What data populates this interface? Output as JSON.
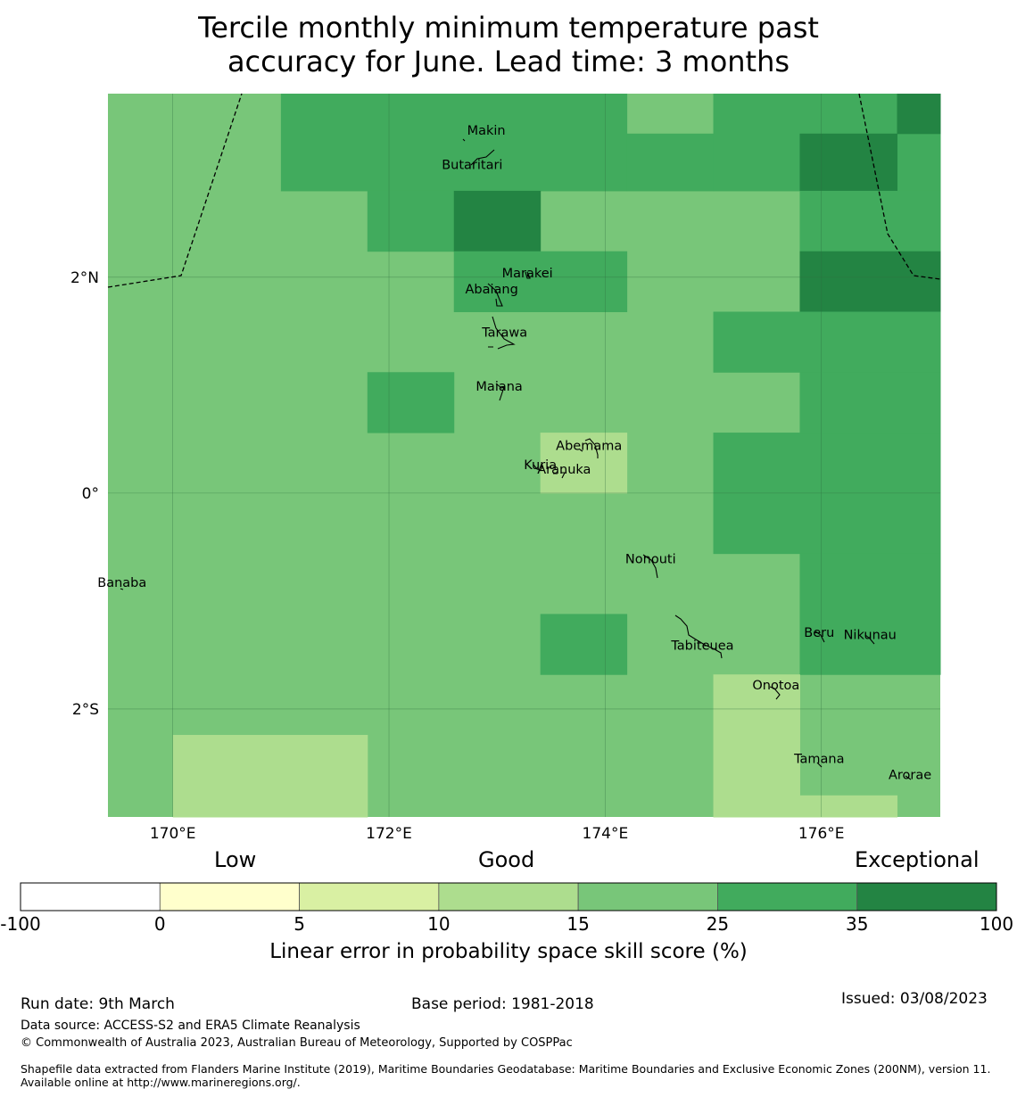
{
  "title": {
    "line1": "Tercile monthly minimum temperature past",
    "line2": "accuracy for June. Lead time: 3 months"
  },
  "map": {
    "x_ticks": [
      "170°E",
      "172°E",
      "174°E",
      "176°E"
    ],
    "y_ticks": [
      "2°N",
      "0°",
      "2°S"
    ],
    "islands": [
      {
        "name": "Makin",
        "lon": 172.9,
        "lat": 3.32
      },
      {
        "name": "Butaritari",
        "lon": 172.77,
        "lat": 3.0
      },
      {
        "name": "Marakei",
        "lon": 173.28,
        "lat": 2.0
      },
      {
        "name": "Abaiang",
        "lon": 172.95,
        "lat": 1.85
      },
      {
        "name": "Tarawa",
        "lon": 173.07,
        "lat": 1.45
      },
      {
        "name": "Maiana",
        "lon": 173.02,
        "lat": 0.95
      },
      {
        "name": "Abemama",
        "lon": 173.85,
        "lat": 0.4
      },
      {
        "name": "Kuria",
        "lon": 173.4,
        "lat": 0.22
      },
      {
        "name": "Aranuka",
        "lon": 173.62,
        "lat": 0.18
      },
      {
        "name": "Nonouti",
        "lon": 174.42,
        "lat": -0.65
      },
      {
        "name": "Banaba",
        "lon": 169.53,
        "lat": -0.87
      },
      {
        "name": "Beru",
        "lon": 175.98,
        "lat": -1.33
      },
      {
        "name": "Tabiteuea",
        "lon": 174.9,
        "lat": -1.45
      },
      {
        "name": "Nikunau",
        "lon": 176.45,
        "lat": -1.35
      },
      {
        "name": "Onotoa",
        "lon": 175.58,
        "lat": -1.82
      },
      {
        "name": "Tamana",
        "lon": 175.98,
        "lat": -2.5
      },
      {
        "name": "Arorae",
        "lon": 176.82,
        "lat": -2.65
      }
    ]
  },
  "legend": {
    "category_labels": [
      "Low",
      "Good",
      "Exceptional"
    ],
    "bins": [
      {
        "from": -100,
        "to": 0,
        "color": "#ffffff"
      },
      {
        "from": 0,
        "to": 5,
        "color": "#ffffcc"
      },
      {
        "from": 5,
        "to": 10,
        "color": "#d9f0a3"
      },
      {
        "from": 10,
        "to": 15,
        "color": "#addd8e"
      },
      {
        "from": 15,
        "to": 25,
        "color": "#78c679"
      },
      {
        "from": 25,
        "to": 35,
        "color": "#41ab5d"
      },
      {
        "from": 35,
        "to": 100,
        "color": "#238443"
      }
    ],
    "tick_labels": [
      "-100",
      "0",
      "5",
      "10",
      "15",
      "25",
      "35",
      "100"
    ],
    "axis_label": "Linear error in probability space skill score (%)"
  },
  "footer": {
    "run_date": "Run date: 9th March",
    "base_period": "Base period: 1981-2018",
    "issued": "Issued: 03/08/2023",
    "data_source": "Data source: ACCESS-S2 and ERA5 Climate Reanalysis",
    "copyright": "© Commonwealth of Australia 2023, Australian Bureau of Meteorology, Supported by COSPPac",
    "shapefile": "Shapefile data extracted from Flanders Marine Institute (2019), Maritime Boundaries Geodatabase: Maritime Boundaries and Exclusive Economic Zones (200NM), version 11. Available online at http://www.marineregions.org/."
  },
  "chart_data": {
    "type": "heatmap",
    "title": "Tercile monthly minimum temperature past accuracy for June. Lead time: 3 months",
    "x_range_deg_lon": [
      169.4,
      177.1
    ],
    "y_range_deg_lat": [
      -3.0,
      3.7
    ],
    "units": "%",
    "class_colors": {
      "10-15": "#addd8e",
      "15-25": "#78c679",
      "25-35": "#41ab5d",
      "35-100": "#238443"
    },
    "cells_lonlat": [
      {
        "lon": [
          171.0,
          174.2
        ],
        "lat": [
          2.8,
          3.7
        ],
        "class": "25-35"
      },
      {
        "lon": [
          174.2,
          175.0
        ],
        "lat": [
          2.8,
          3.33
        ],
        "class": "25-35"
      },
      {
        "lon": [
          175.0,
          176.7
        ],
        "lat": [
          2.8,
          3.7
        ],
        "class": "25-35"
      },
      {
        "lon": [
          176.7,
          177.1
        ],
        "lat": [
          2.8,
          3.33
        ],
        "class": "25-35"
      },
      {
        "lon": [
          176.7,
          177.1
        ],
        "lat": [
          3.33,
          3.7
        ],
        "class": "35-100"
      },
      {
        "lon": [
          175.8,
          176.7
        ],
        "lat": [
          2.8,
          3.33
        ],
        "class": "35-100"
      },
      {
        "lon": [
          171.8,
          172.6
        ],
        "lat": [
          2.24,
          2.8
        ],
        "class": "25-35"
      },
      {
        "lon": [
          172.6,
          173.4
        ],
        "lat": [
          2.24,
          2.8
        ],
        "class": "35-100"
      },
      {
        "lon": [
          175.8,
          177.1
        ],
        "lat": [
          2.24,
          2.8
        ],
        "class": "25-35"
      },
      {
        "lon": [
          172.6,
          174.2
        ],
        "lat": [
          1.68,
          2.24
        ],
        "class": "25-35"
      },
      {
        "lon": [
          175.8,
          177.1
        ],
        "lat": [
          1.68,
          2.24
        ],
        "class": "35-100"
      },
      {
        "lon": [
          175.0,
          177.1
        ],
        "lat": [
          1.12,
          1.68
        ],
        "class": "25-35"
      },
      {
        "lon": [
          171.8,
          172.6
        ],
        "lat": [
          0.56,
          1.12
        ],
        "class": "25-35"
      },
      {
        "lon": [
          175.8,
          177.1
        ],
        "lat": [
          0.56,
          1.12
        ],
        "class": "25-35"
      },
      {
        "lon": [
          173.4,
          174.2
        ],
        "lat": [
          0.0,
          0.56
        ],
        "class": "10-15"
      },
      {
        "lon": [
          175.0,
          177.1
        ],
        "lat": [
          -0.56,
          0.56
        ],
        "class": "25-35"
      },
      {
        "lon": [
          175.8,
          177.1
        ],
        "lat": [
          -1.68,
          -0.56
        ],
        "class": "25-35"
      },
      {
        "lon": [
          173.4,
          174.2
        ],
        "lat": [
          -1.68,
          -1.12
        ],
        "class": "25-35"
      },
      {
        "lon": [
          175.0,
          175.8
        ],
        "lat": [
          -3.0,
          -1.68
        ],
        "class": "10-15"
      },
      {
        "lon": [
          170.0,
          171.8
        ],
        "lat": [
          -3.0,
          -2.24
        ],
        "class": "10-15"
      },
      {
        "lon": [
          175.8,
          176.7
        ],
        "lat": [
          -3.0,
          -2.8
        ],
        "class": "10-15"
      }
    ],
    "background_class": "15-25"
  }
}
